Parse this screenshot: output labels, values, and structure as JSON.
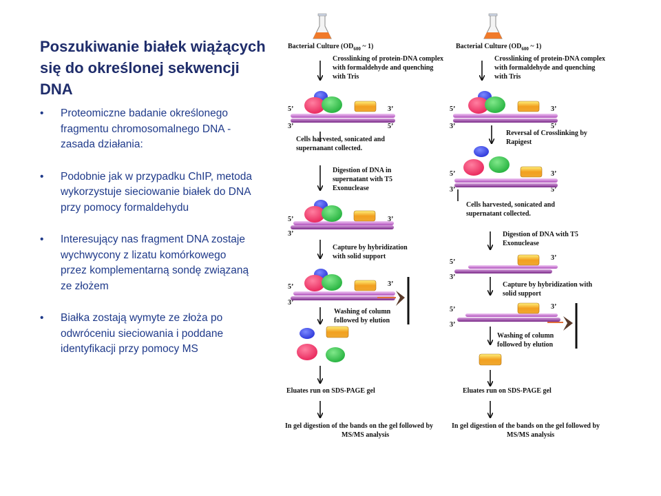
{
  "title": "Poszukiwanie białek wiążących się do określonej sekwencji DNA",
  "bullets": [
    "Proteomiczne badanie określonego fragmentu chromosomalnego DNA - zasada działania:",
    "Podobnie jak w przypadku ChIP, metoda wykorzystuje sieciowanie białek do DNA przy pomocy formaldehydu",
    "Interesujący nas fragment DNA zostaje wychwycony z lizatu komórkowego przez komplementarną sondę związaną ze złożem",
    "Białka zostają wymyte ze złoża po odwróceniu sieciowania i poddane identyfikacji przy pomocy MS"
  ],
  "bullet_symbol": "•",
  "diagram": {
    "culture_label": "Bacterial Culture (OD",
    "culture_sub": "600",
    "culture_tail": " ~ 1)",
    "left_steps": {
      "s1a": "Crosslinking of protein-DNA complex",
      "s1b": "with formaldehyde and quenching",
      "s1c": "with Tris",
      "s2a": "Cells harvested, sonicated and",
      "s2b": "supernanant collected.",
      "s3a": "Digestion of DNA in",
      "s3b": "supernatant with T5",
      "s3c": "Exonuclease",
      "s4a": "Capture by hybridization",
      "s4b": "with solid support",
      "s5a": "Washing of column",
      "s5b": "followed by elution",
      "s6": "Eluates run on SDS-PAGE gel",
      "s7a": "In gel digestion of the bands on the gel followed by",
      "s7b": "MS/MS analysis"
    },
    "right_steps": {
      "s1a": "Crosslinking of protein-DNA complex",
      "s1b": "with formaldehyde and quenching",
      "s1c": "with Tris",
      "s2a": "Reversal of Crosslinking by",
      "s2b": "Rapigest",
      "s3a": "Cells harvested, sonicated and",
      "s3b": "supernatant collected.",
      "s4a": "Digestion of DNA with T5",
      "s4b": "Exonuclease",
      "s5a": "Capture by hybridization with",
      "s5b": "solid support",
      "s6a": "Washing of column",
      "s6b": "followed by elution",
      "s7": "Eluates run on SDS-PAGE gel",
      "s8a": "In gel digestion of the bands on the gel followed by",
      "s8b": "MS/MS analysis"
    },
    "end5": "5’",
    "end3": "3’",
    "colors": {
      "dna_top": "#c060c8",
      "dna_bottom": "#8a3a96",
      "protein_blue": "#2a34d8",
      "protein_red": "#e8245a",
      "protein_green": "#22b03c",
      "protein_orange": "#f2a020",
      "title_color": "#1f2d6b",
      "bullet_color": "#1f3a8a",
      "flask_liquid": "#f07a2a",
      "pointer_arrow": "#e0703a",
      "column_tip": "#5a3a2a"
    }
  }
}
